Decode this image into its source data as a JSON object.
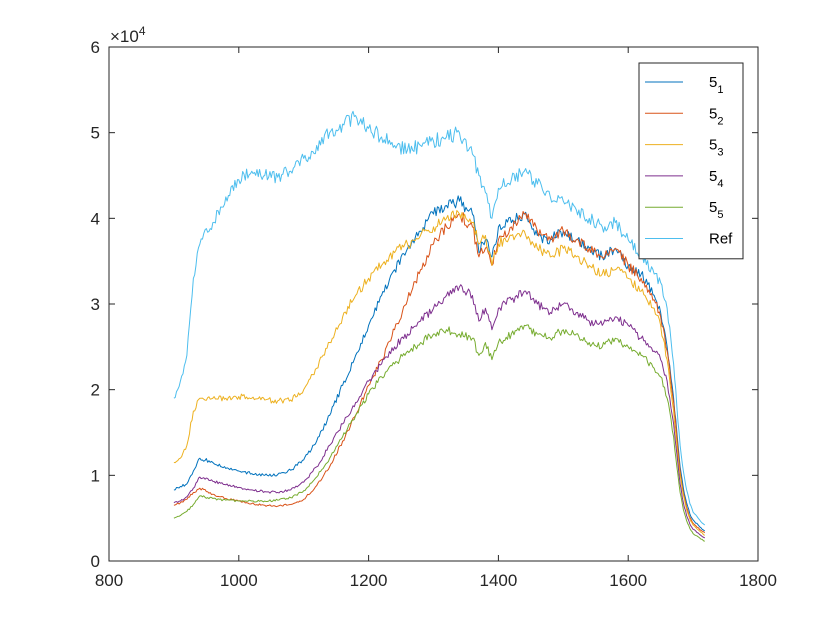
{
  "chart_data": {
    "type": "line",
    "title": "",
    "xlabel": "",
    "ylabel": "",
    "xlim": [
      800,
      1800
    ],
    "ylim": [
      0,
      60000
    ],
    "x_ticks": [
      "800",
      "1000",
      "1200",
      "1400",
      "1600",
      "1800"
    ],
    "y_ticks": [
      "0",
      "1",
      "2",
      "3",
      "4",
      "5",
      "6"
    ],
    "y_tick_values": [
      0,
      10000,
      20000,
      30000,
      40000,
      50000,
      60000
    ],
    "y_exponent_base": "×10",
    "y_exponent_power": "4",
    "grid": false,
    "legend_position": "top-right",
    "x": [
      900,
      910,
      920,
      930,
      940,
      960,
      980,
      1000,
      1020,
      1040,
      1060,
      1080,
      1100,
      1120,
      1140,
      1160,
      1180,
      1200,
      1220,
      1240,
      1260,
      1280,
      1300,
      1320,
      1340,
      1360,
      1370,
      1380,
      1390,
      1400,
      1420,
      1440,
      1460,
      1480,
      1500,
      1520,
      1540,
      1560,
      1580,
      1600,
      1620,
      1640,
      1650,
      1660,
      1670,
      1675,
      1680,
      1685,
      1690,
      1695,
      1700,
      1710,
      1718
    ],
    "series": [
      {
        "name": "5",
        "sub": "1",
        "color": "#0072BD",
        "values": [
          8300,
          8700,
          9000,
          10500,
          12000,
          11500,
          10800,
          10500,
          10200,
          10000,
          10100,
          10600,
          11800,
          14000,
          17000,
          20500,
          24000,
          27500,
          31000,
          34000,
          36500,
          38500,
          40500,
          41500,
          42000,
          40500,
          36000,
          37500,
          35500,
          39000,
          39500,
          40500,
          38000,
          37500,
          38500,
          37500,
          36500,
          35500,
          36500,
          34500,
          33500,
          31000,
          29000,
          25000,
          19000,
          15000,
          11000,
          8500,
          6800,
          5500,
          4800,
          4000,
          3500
        ]
      },
      {
        "name": "5",
        "sub": "2",
        "color": "#D95319",
        "values": [
          6500,
          6800,
          7200,
          8000,
          8500,
          7800,
          7300,
          7000,
          6700,
          6500,
          6400,
          6600,
          7200,
          8800,
          11000,
          14000,
          17000,
          20500,
          23500,
          27000,
          30500,
          34000,
          37000,
          39000,
          40500,
          39000,
          35500,
          36500,
          34500,
          37500,
          39000,
          40500,
          38500,
          37500,
          38500,
          37500,
          36500,
          35500,
          36500,
          34500,
          33000,
          30500,
          28500,
          24500,
          18500,
          14500,
          10500,
          8000,
          6300,
          5100,
          4400,
          3700,
          3300
        ]
      },
      {
        "name": "5",
        "sub": "3",
        "color": "#EDB120",
        "values": [
          11500,
          12000,
          13500,
          17500,
          19000,
          19000,
          19000,
          19200,
          19000,
          18800,
          18700,
          18800,
          20000,
          22500,
          25500,
          28500,
          31000,
          33000,
          34500,
          36000,
          37000,
          38000,
          39000,
          40000,
          40500,
          39500,
          37000,
          38000,
          34500,
          37000,
          38000,
          38500,
          36500,
          35500,
          36500,
          35500,
          34500,
          33500,
          34000,
          33000,
          31500,
          29500,
          27500,
          23500,
          17500,
          13500,
          10000,
          7700,
          6000,
          4900,
          4200,
          3500,
          3000
        ]
      },
      {
        "name": "5",
        "sub": "4",
        "color": "#7E2F8E",
        "values": [
          6800,
          7000,
          7500,
          8500,
          9800,
          9300,
          8900,
          8600,
          8300,
          8100,
          8000,
          8300,
          9200,
          11000,
          13500,
          16000,
          18500,
          21000,
          23000,
          25000,
          26500,
          28000,
          29500,
          31000,
          32000,
          31000,
          28000,
          29500,
          27000,
          29500,
          30500,
          31500,
          30000,
          29000,
          30000,
          29000,
          28000,
          27500,
          28500,
          27500,
          26000,
          24500,
          23500,
          21000,
          16000,
          12500,
          9000,
          6800,
          5300,
          4300,
          3700,
          3100,
          2700
        ]
      },
      {
        "name": "5",
        "sub": "5",
        "color": "#77AC30",
        "values": [
          5000,
          5300,
          5800,
          6600,
          7600,
          7300,
          7100,
          7000,
          7000,
          7000,
          7100,
          7400,
          8200,
          9800,
          12000,
          14500,
          17000,
          19500,
          21500,
          23000,
          24500,
          25500,
          26500,
          27000,
          26500,
          26000,
          24000,
          25500,
          23500,
          25500,
          26500,
          27500,
          26500,
          26000,
          27000,
          26500,
          25500,
          25000,
          26000,
          25000,
          24000,
          22500,
          21500,
          19000,
          14500,
          11000,
          8000,
          6000,
          4700,
          3800,
          3200,
          2700,
          2300
        ]
      },
      {
        "name": "Ref",
        "sub": "",
        "color": "#4DBEEE",
        "values": [
          19000,
          21000,
          24000,
          33000,
          37000,
          39500,
          42500,
          44500,
          45500,
          45000,
          44800,
          45500,
          47000,
          48500,
          50000,
          51000,
          52000,
          50500,
          49500,
          48500,
          48000,
          48500,
          49000,
          49500,
          50000,
          47500,
          45000,
          43000,
          40000,
          43500,
          44500,
          45500,
          44000,
          42500,
          42000,
          41000,
          40000,
          39000,
          39500,
          37500,
          35500,
          33500,
          32500,
          29500,
          23000,
          18000,
          13500,
          10500,
          8300,
          6700,
          5700,
          4800,
          4200
        ]
      }
    ]
  }
}
